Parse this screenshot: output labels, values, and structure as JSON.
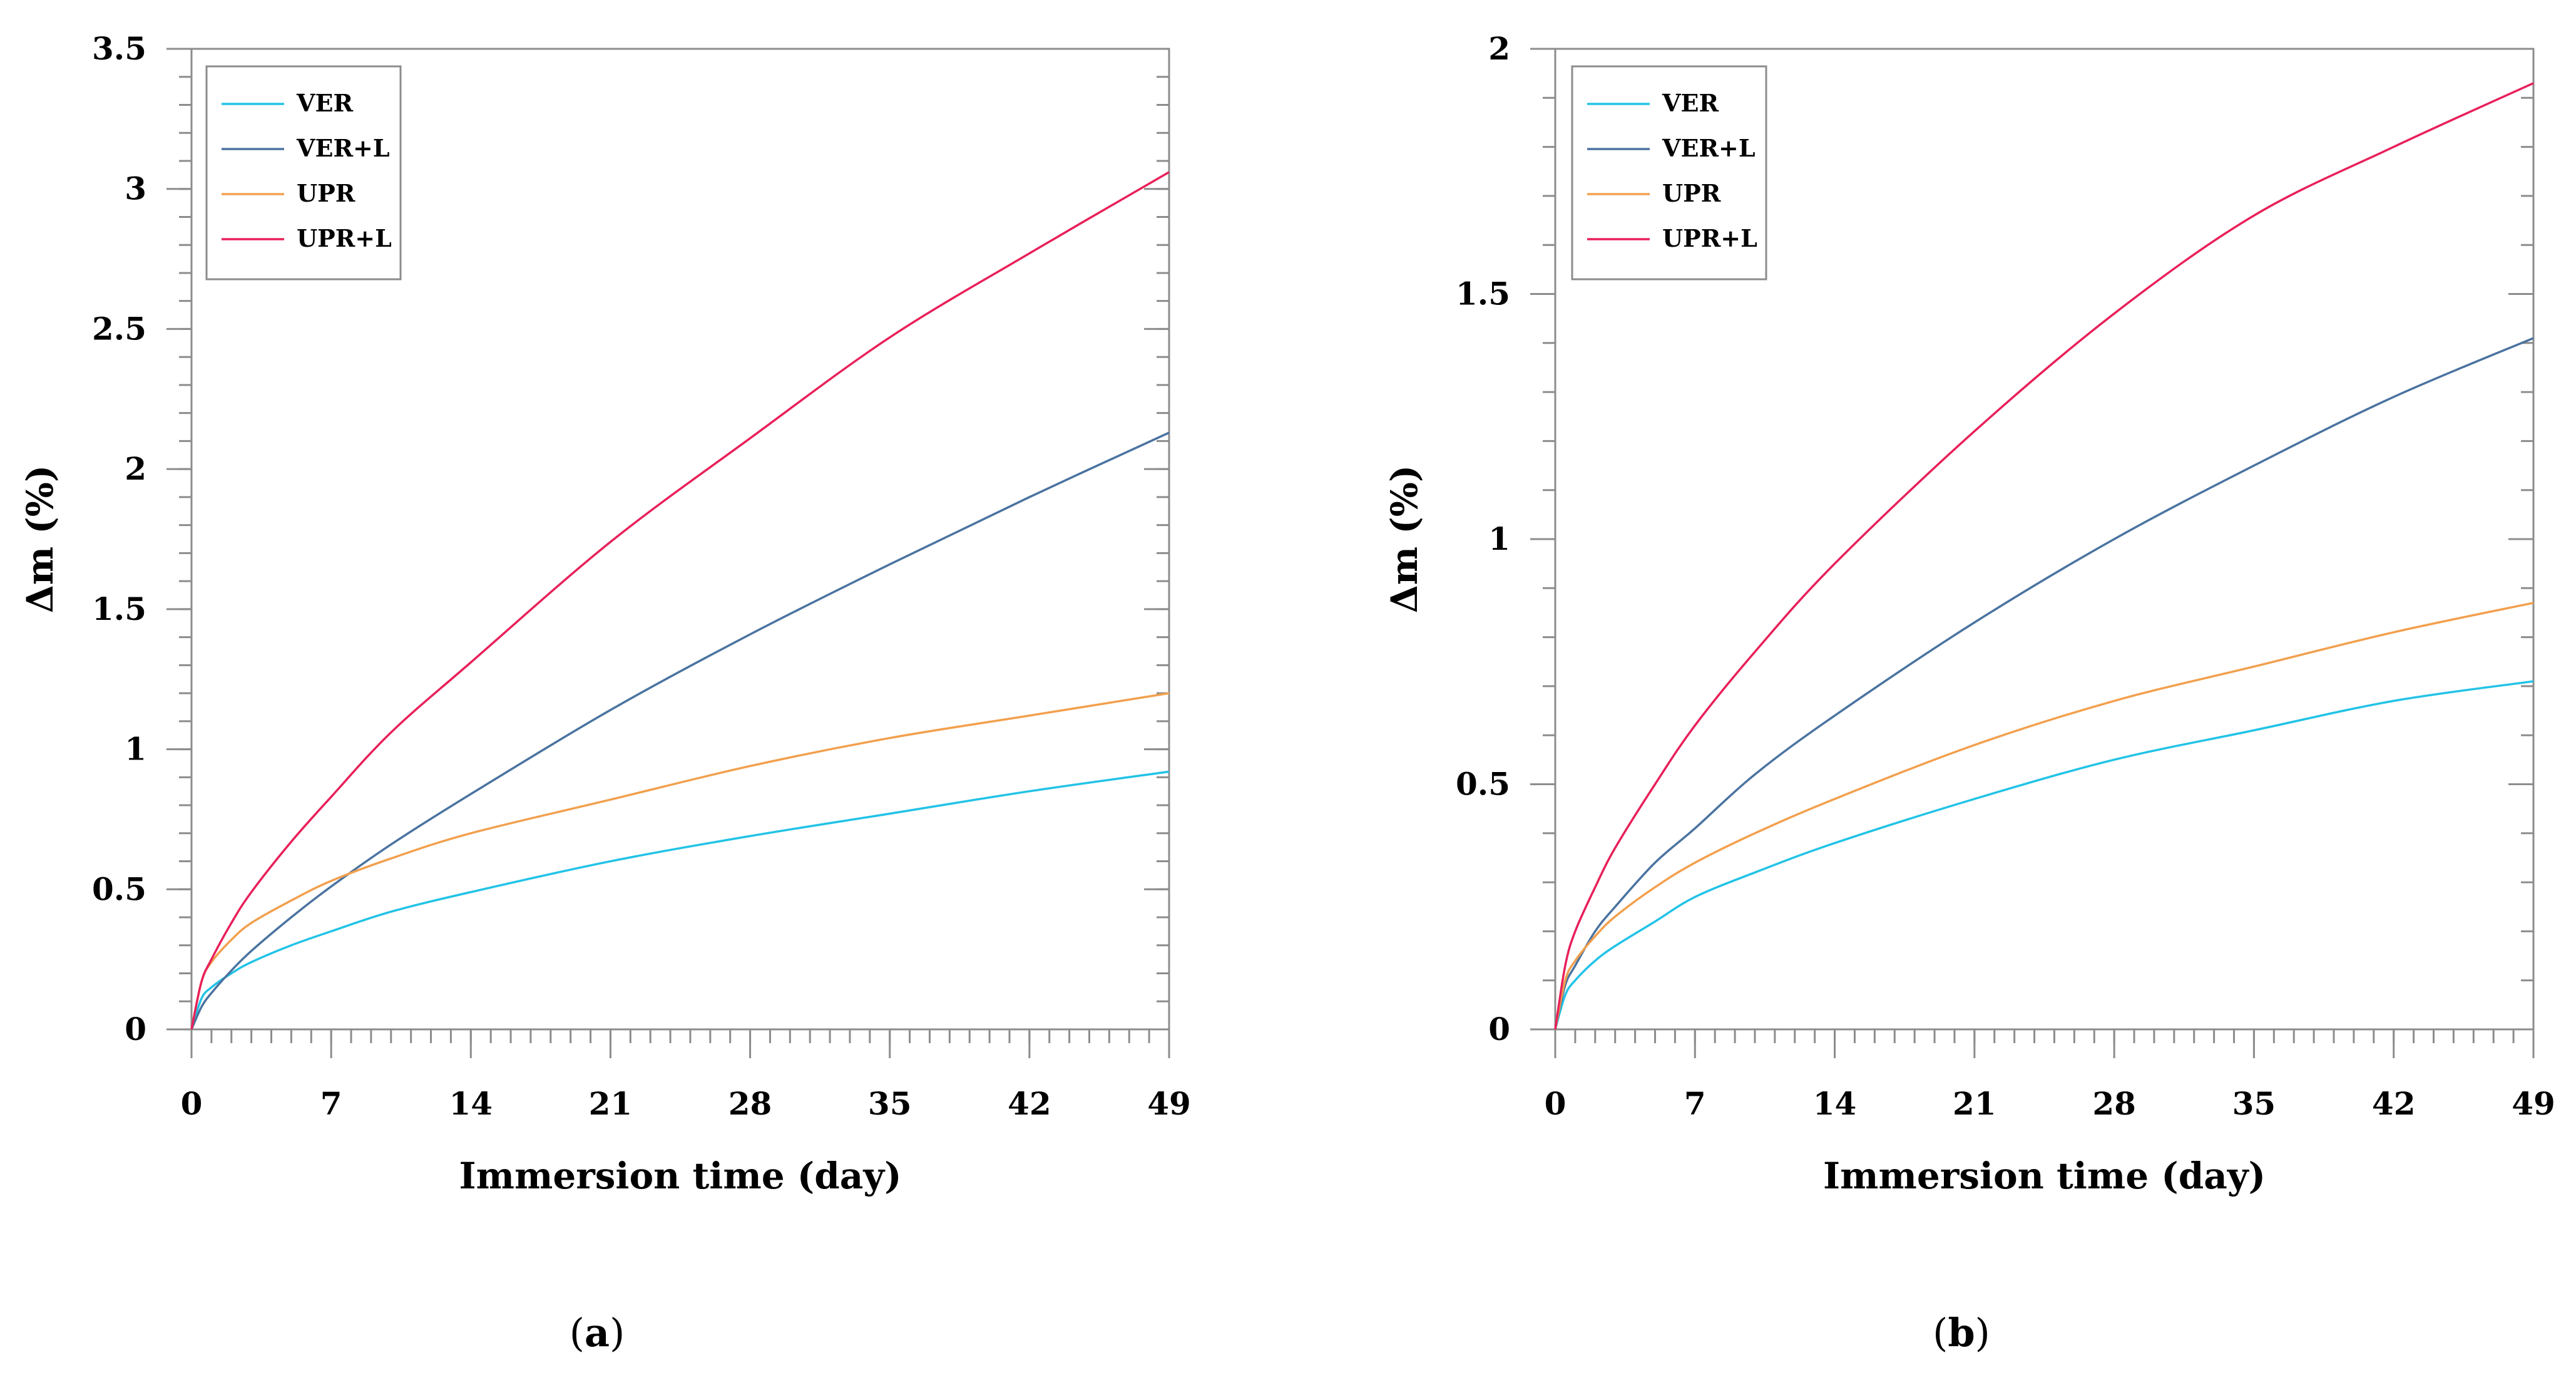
{
  "chart_data": [
    {
      "type": "line",
      "xlabel": "Immersion time (day)",
      "ylabel": "Δm (%)",
      "xlim": [
        0,
        49
      ],
      "ylim": [
        0,
        3.5
      ],
      "xticks": [
        0,
        7,
        14,
        21,
        28,
        35,
        42,
        49
      ],
      "xtick_labels": [
        "0",
        "7",
        "14",
        "21",
        "28",
        "35",
        "42",
        "49"
      ],
      "yticks": [
        0,
        0.5,
        1,
        1.5,
        2,
        2.5,
        3,
        3.5
      ],
      "ytick_labels": [
        "0",
        "0.5",
        "1",
        "1.5",
        "2",
        "2.5",
        "3",
        "3.5"
      ],
      "legend": "top-left",
      "caption": {
        "open": "(",
        "letter": "a",
        "close": ")"
      },
      "x": [
        0,
        0.5,
        1,
        2,
        3,
        5,
        7,
        10,
        14,
        21,
        28,
        35,
        42,
        49
      ],
      "series": [
        {
          "name": "VER",
          "color": "#22c3e6",
          "values": [
            0,
            0.11,
            0.15,
            0.2,
            0.24,
            0.3,
            0.35,
            0.42,
            0.49,
            0.6,
            0.69,
            0.77,
            0.85,
            0.92
          ]
        },
        {
          "name": "VER+L",
          "color": "#4a73a0",
          "values": [
            0,
            0.08,
            0.13,
            0.21,
            0.28,
            0.4,
            0.51,
            0.66,
            0.84,
            1.14,
            1.41,
            1.66,
            1.9,
            2.13
          ]
        },
        {
          "name": "UPR",
          "color": "#f2a04e",
          "values": [
            0,
            0.17,
            0.24,
            0.32,
            0.38,
            0.46,
            0.53,
            0.61,
            0.7,
            0.82,
            0.94,
            1.04,
            1.12,
            1.2
          ]
        },
        {
          "name": "UPR+L",
          "color": "#e8205a",
          "values": [
            0,
            0.17,
            0.25,
            0.38,
            0.49,
            0.67,
            0.83,
            1.06,
            1.31,
            1.74,
            2.11,
            2.47,
            2.77,
            3.06
          ]
        }
      ]
    },
    {
      "type": "line",
      "xlabel": "Immersion time (day)",
      "ylabel": "Δm (%)",
      "xlim": [
        0,
        49
      ],
      "ylim": [
        0,
        2
      ],
      "xticks": [
        0,
        7,
        14,
        21,
        28,
        35,
        42,
        49
      ],
      "xtick_labels": [
        "0",
        "7",
        "14",
        "21",
        "28",
        "35",
        "42",
        "49"
      ],
      "yticks": [
        0,
        0.5,
        1,
        1.5,
        2
      ],
      "ytick_labels": [
        "0",
        "0.5",
        "1",
        "1.5",
        "2"
      ],
      "legend": "top-left",
      "caption": {
        "open": "(",
        "letter": "b",
        "close": ")"
      },
      "x": [
        0,
        0.5,
        1,
        2,
        3,
        5,
        7,
        10,
        14,
        21,
        28,
        35,
        42,
        49
      ],
      "series": [
        {
          "name": "VER",
          "color": "#22c3e6",
          "values": [
            0,
            0.07,
            0.1,
            0.14,
            0.17,
            0.22,
            0.27,
            0.32,
            0.38,
            0.47,
            0.55,
            0.61,
            0.67,
            0.71
          ]
        },
        {
          "name": "VER+L",
          "color": "#4a73a0",
          "values": [
            0,
            0.09,
            0.13,
            0.2,
            0.25,
            0.34,
            0.41,
            0.52,
            0.64,
            0.83,
            1.0,
            1.15,
            1.29,
            1.41
          ]
        },
        {
          "name": "UPR",
          "color": "#f2a04e",
          "values": [
            0,
            0.1,
            0.14,
            0.19,
            0.23,
            0.29,
            0.34,
            0.4,
            0.47,
            0.58,
            0.67,
            0.74,
            0.81,
            0.87
          ]
        },
        {
          "name": "UPR+L",
          "color": "#e8205a",
          "values": [
            0,
            0.13,
            0.2,
            0.29,
            0.37,
            0.5,
            0.62,
            0.77,
            0.95,
            1.22,
            1.46,
            1.66,
            1.8,
            1.93
          ]
        }
      ]
    }
  ]
}
